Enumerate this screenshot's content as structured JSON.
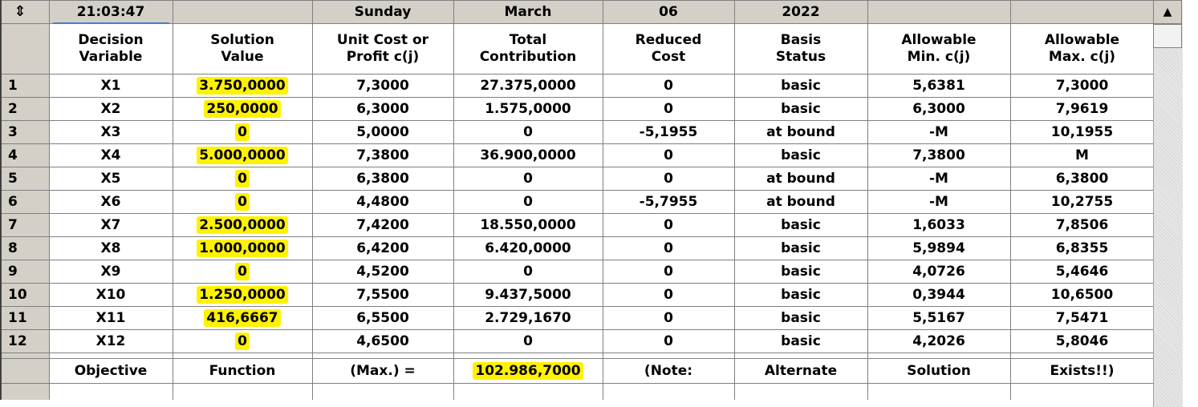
{
  "header_bar": {
    "time": "21:03:47",
    "blank1": "",
    "day": "Sunday",
    "month": "March",
    "date": "06",
    "year": "2022",
    "blank2": "",
    "blank3": ""
  },
  "columns": [
    [
      "Decision",
      "Variable"
    ],
    [
      "Solution",
      "Value"
    ],
    [
      "Unit Cost or",
      "Profit c(j)"
    ],
    [
      "Total",
      "Contribution"
    ],
    [
      "Reduced",
      "Cost"
    ],
    [
      "Basis",
      "Status"
    ],
    [
      "Allowable",
      "Min. c(j)"
    ],
    [
      "Allowable",
      "Max. c(j)"
    ]
  ],
  "rows": [
    {
      "n": "1",
      "cells": [
        "X1",
        "3.750,0000",
        "7,3000",
        "27.375,0000",
        "0",
        "basic",
        "5,6381",
        "7,3000"
      ]
    },
    {
      "n": "2",
      "cells": [
        "X2",
        "250,0000",
        "6,3000",
        "1.575,0000",
        "0",
        "basic",
        "6,3000",
        "7,9619"
      ]
    },
    {
      "n": "3",
      "cells": [
        "X3",
        "0",
        "5,0000",
        "0",
        "-5,1955",
        "at bound",
        "-M",
        "10,1955"
      ]
    },
    {
      "n": "4",
      "cells": [
        "X4",
        "5.000,0000",
        "7,3800",
        "36.900,0000",
        "0",
        "basic",
        "7,3800",
        "M"
      ]
    },
    {
      "n": "5",
      "cells": [
        "X5",
        "0",
        "6,3800",
        "0",
        "0",
        "at bound",
        "-M",
        "6,3800"
      ]
    },
    {
      "n": "6",
      "cells": [
        "X6",
        "0",
        "4,4800",
        "0",
        "-5,7955",
        "at bound",
        "-M",
        "10,2755"
      ]
    },
    {
      "n": "7",
      "cells": [
        "X7",
        "2.500,0000",
        "7,4200",
        "18.550,0000",
        "0",
        "basic",
        "1,6033",
        "7,8506"
      ]
    },
    {
      "n": "8",
      "cells": [
        "X8",
        "1.000,0000",
        "6,4200",
        "6.420,0000",
        "0",
        "basic",
        "5,9894",
        "6,8355"
      ]
    },
    {
      "n": "9",
      "cells": [
        "X9",
        "0",
        "4,5200",
        "0",
        "0",
        "basic",
        "4,0726",
        "5,4646"
      ]
    },
    {
      "n": "10",
      "cells": [
        "X10",
        "1.250,0000",
        "7,5500",
        "9.437,5000",
        "0",
        "basic",
        "0,3944",
        "10,6500"
      ]
    },
    {
      "n": "11",
      "cells": [
        "X11",
        "416,6667",
        "6,5500",
        "2.729,1670",
        "0",
        "basic",
        "5,5167",
        "7,5471"
      ]
    },
    {
      "n": "12",
      "cells": [
        "X12",
        "0",
        "4,6500",
        "0",
        "0",
        "basic",
        "4,2026",
        "5,8046"
      ]
    }
  ],
  "objective_row": [
    "Objective",
    "Function",
    "(Max.) =",
    "102.986,7000",
    "(Note:",
    "Alternate",
    "Solution",
    "Exists!!)"
  ],
  "highlight_color": "#fff200",
  "icons": {
    "resize": "resize-arrows-icon",
    "scroll_up": "arrow-up-icon"
  },
  "glyphs": {
    "resize": "⇕",
    "scroll_up": "▲"
  }
}
